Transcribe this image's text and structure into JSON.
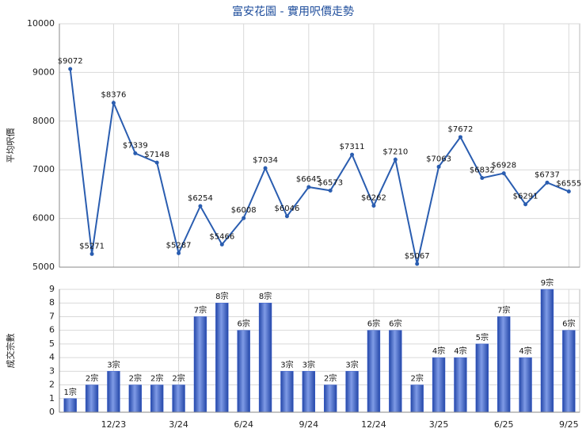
{
  "chart_data": [
    {
      "type": "line",
      "title": "富安花園 - 實用呎價走勢",
      "y_label": "平均呎價",
      "values": [
        9072,
        5271,
        8376,
        7339,
        7148,
        5287,
        6254,
        5466,
        6008,
        7034,
        6046,
        6645,
        6573,
        7311,
        6262,
        7210,
        5067,
        7063,
        7672,
        6832,
        6928,
        6291,
        6737,
        6555
      ],
      "value_labels": [
        "$9072",
        "$5271",
        "$8376",
        "$7339",
        "$7148",
        "$5287",
        "$6254",
        "$5466",
        "$6008",
        "$7034",
        "$6046",
        "$6645",
        "$6573",
        "$7311",
        "$6262",
        "$7210",
        "$5067",
        "$7063",
        "$7672",
        "$6832",
        "$6928",
        "$6291",
        "$6737",
        "$6555"
      ],
      "ylim": [
        5000,
        10000
      ],
      "yticks": [
        5000,
        6000,
        7000,
        8000,
        9000,
        10000
      ],
      "color": "#2a5db0",
      "grid": true
    },
    {
      "type": "bar",
      "y_label": "成交宗數",
      "categories": [
        null,
        null,
        "12/23",
        null,
        null,
        "3/24",
        null,
        null,
        "6/24",
        null,
        null,
        "9/24",
        null,
        null,
        "12/24",
        null,
        null,
        "3/25",
        null,
        null,
        "6/25",
        null,
        null,
        "9/25"
      ],
      "values": [
        1,
        2,
        3,
        2,
        2,
        2,
        7,
        8,
        6,
        8,
        3,
        3,
        2,
        3,
        6,
        6,
        2,
        4,
        4,
        5,
        7,
        4,
        9,
        6
      ],
      "value_labels": [
        "1宗",
        "2宗",
        "3宗",
        "2宗",
        "2宗",
        "2宗",
        "7宗",
        "8宗",
        "6宗",
        "8宗",
        "3宗",
        "3宗",
        "2宗",
        "3宗",
        "6宗",
        "6宗",
        "2宗",
        "4宗",
        "4宗",
        "5宗",
        "7宗",
        "4宗",
        "9宗",
        "6宗"
      ],
      "ylim": [
        0,
        9
      ],
      "yticks": [
        0,
        1,
        2,
        3,
        4,
        5,
        6,
        7,
        8,
        9
      ],
      "color": "#3a5fcd",
      "grid": true
    }
  ]
}
